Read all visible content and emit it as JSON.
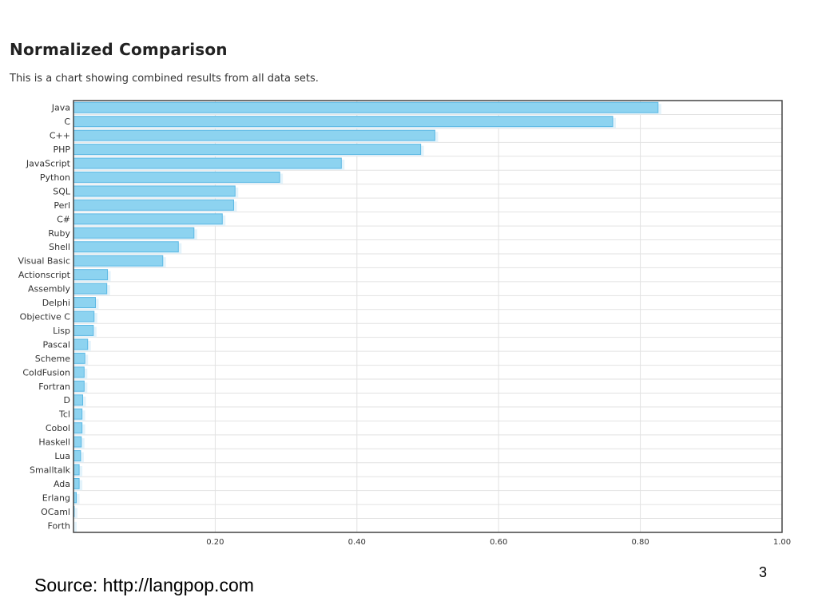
{
  "page": {
    "title": "Normalized Comparison",
    "subtitle": "This is a chart showing combined results from all data sets.",
    "source": "Source: http://langpop.com",
    "page_number": "3"
  },
  "colors": {
    "bar_fill": "#8dd3f0",
    "bar_stroke": "#5bb8e4",
    "bar_shadow": "#e3f3fb",
    "grid": "#e2e2e2",
    "axis": "#444444",
    "text": "#333333"
  },
  "chart_data": {
    "type": "bar",
    "orientation": "horizontal",
    "title": "",
    "xlabel": "",
    "ylabel": "",
    "xlim": [
      0,
      1.0
    ],
    "x_ticks": [
      0.2,
      0.4,
      0.6,
      0.8,
      1.0
    ],
    "x_tick_labels": [
      "0.20",
      "0.40",
      "0.60",
      "0.80",
      "1.00"
    ],
    "grid": true,
    "categories": [
      "Java",
      "C",
      "C++",
      "PHP",
      "JavaScript",
      "Python",
      "SQL",
      "Perl",
      "C#",
      "Ruby",
      "Shell",
      "Visual Basic",
      "Actionscript",
      "Assembly",
      "Delphi",
      "Objective C",
      "Lisp",
      "Pascal",
      "Scheme",
      "ColdFusion",
      "Fortran",
      "D",
      "Tcl",
      "Cobol",
      "Haskell",
      "Lua",
      "Smalltalk",
      "Ada",
      "Erlang",
      "OCaml",
      "Forth"
    ],
    "values": [
      0.825,
      0.761,
      0.51,
      0.49,
      0.378,
      0.291,
      0.228,
      0.226,
      0.21,
      0.17,
      0.148,
      0.126,
      0.048,
      0.047,
      0.031,
      0.029,
      0.028,
      0.02,
      0.016,
      0.015,
      0.015,
      0.013,
      0.012,
      0.012,
      0.011,
      0.01,
      0.008,
      0.008,
      0.004,
      0.001,
      0.0
    ]
  }
}
